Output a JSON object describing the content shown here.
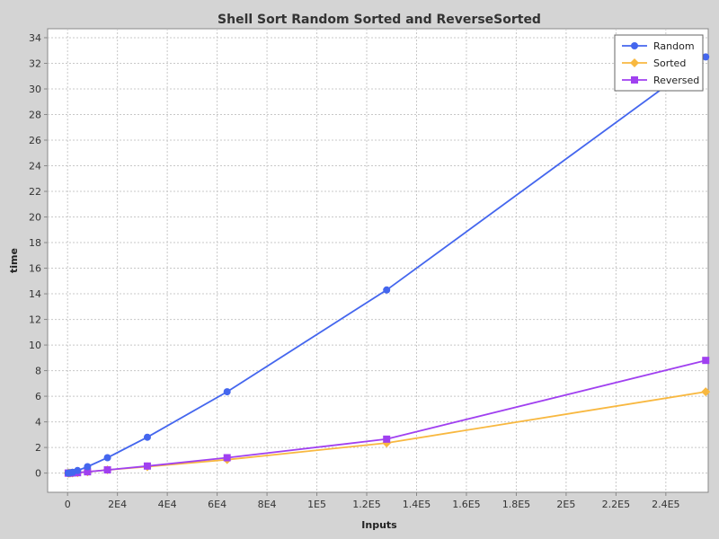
{
  "chart_data": {
    "type": "line",
    "title": "Shell Sort  Random Sorted and ReverseSorted",
    "xlabel": "Inputs",
    "ylabel": "time",
    "xlim": [
      -8000,
      257000
    ],
    "ylim": [
      -1.5,
      34.7
    ],
    "x_ticks": [
      0,
      20000,
      40000,
      60000,
      80000,
      100000,
      120000,
      140000,
      160000,
      180000,
      200000,
      220000,
      240000
    ],
    "x_tick_labels": [
      "0",
      "2E4",
      "4E4",
      "6E4",
      "8E4",
      "1E5",
      "1.2E5",
      "1.4E5",
      "1.6E5",
      "1.8E5",
      "2E5",
      "2.2E5",
      "2.4E5"
    ],
    "y_ticks": [
      0,
      2,
      4,
      6,
      8,
      10,
      12,
      14,
      16,
      18,
      20,
      22,
      24,
      26,
      28,
      30,
      32,
      34
    ],
    "y_tick_labels": [
      "0",
      "2",
      "4",
      "6",
      "8",
      "10",
      "12",
      "14",
      "16",
      "18",
      "20",
      "22",
      "24",
      "26",
      "28",
      "30",
      "32",
      "34"
    ],
    "grid": true,
    "legend_position": "top-right",
    "series": [
      {
        "name": "Random",
        "color": "#4466ee",
        "marker": "circle",
        "x": [
          250,
          500,
          1000,
          2000,
          4000,
          8000,
          16000,
          32000,
          64000,
          128000,
          256000
        ],
        "y": [
          0.0,
          0.0,
          0.03,
          0.06,
          0.2,
          0.5,
          1.2,
          2.8,
          6.35,
          14.3,
          32.5
        ]
      },
      {
        "name": "Sorted",
        "color": "#f8b840",
        "marker": "diamond",
        "x": [
          250,
          500,
          1000,
          2000,
          4000,
          8000,
          16000,
          32000,
          64000,
          128000,
          256000
        ],
        "y": [
          0.0,
          0.0,
          0.0,
          0.01,
          0.03,
          0.1,
          0.25,
          0.5,
          1.05,
          2.35,
          6.35
        ]
      },
      {
        "name": "Reversed",
        "color": "#a040f0",
        "marker": "square",
        "x": [
          250,
          500,
          1000,
          2000,
          4000,
          8000,
          16000,
          32000,
          64000,
          128000,
          256000
        ],
        "y": [
          0.0,
          0.0,
          0.0,
          0.01,
          0.03,
          0.1,
          0.25,
          0.55,
          1.2,
          2.65,
          8.8
        ]
      }
    ]
  },
  "colors": {
    "background": "#d4d4d4",
    "plot_background": "#ffffff",
    "grid": "#c8c8c8",
    "axis": "#888888"
  }
}
